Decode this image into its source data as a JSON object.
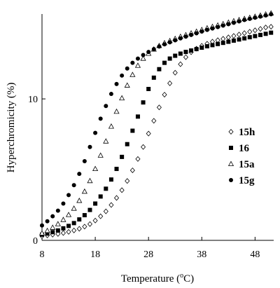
{
  "chart_data": {
    "type": "scatter",
    "xlabel": "Temperature (",
    "xlabel_sup": "o",
    "xlabel_suffix": "C)",
    "ylabel": "Hyperchromicity (%)",
    "xlim": [
      8,
      51.5
    ],
    "ylim": [
      0,
      16
    ],
    "x_ticks": [
      8,
      18,
      28,
      38,
      48
    ],
    "y_ticks": [
      0,
      10
    ],
    "x_tick_labels": [
      "8",
      "18",
      "28",
      "38",
      "48"
    ],
    "y_tick_labels": [
      "0",
      "10"
    ],
    "legend_position": "right",
    "grid": false,
    "series": [
      {
        "name": "15h",
        "marker": "diamond-open",
        "x": [
          8,
          9,
          10,
          11,
          12,
          13,
          14,
          15,
          16,
          17,
          18,
          19,
          20,
          21,
          22,
          23,
          24,
          25,
          26,
          27,
          28,
          29,
          30,
          31,
          32,
          33,
          34,
          35,
          36,
          37,
          38,
          39,
          40,
          41,
          42,
          43,
          44,
          45,
          46,
          47,
          48,
          49,
          50,
          51
        ],
        "y": [
          0.3,
          0.35,
          0.4,
          0.45,
          0.52,
          0.6,
          0.7,
          0.82,
          0.97,
          1.15,
          1.4,
          1.7,
          2.05,
          2.5,
          3.0,
          3.55,
          4.2,
          4.95,
          5.75,
          6.6,
          7.55,
          8.45,
          9.4,
          10.3,
          11.1,
          11.85,
          12.45,
          12.95,
          13.3,
          13.55,
          13.75,
          13.9,
          14.05,
          14.15,
          14.25,
          14.35,
          14.45,
          14.55,
          14.65,
          14.75,
          14.85,
          14.95,
          15.05,
          15.1
        ]
      },
      {
        "name": "16",
        "marker": "square-filled",
        "x": [
          8,
          9,
          10,
          11,
          12,
          13,
          14,
          15,
          16,
          17,
          18,
          19,
          20,
          21,
          22,
          23,
          24,
          25,
          26,
          27,
          28,
          29,
          30,
          31,
          32,
          33,
          34,
          35,
          36,
          37,
          38,
          39,
          40,
          41,
          42,
          43,
          44,
          45,
          46,
          47,
          48,
          49,
          50,
          51
        ],
        "y": [
          0.4,
          0.48,
          0.58,
          0.7,
          0.85,
          1.02,
          1.22,
          1.48,
          1.78,
          2.15,
          2.6,
          3.1,
          3.65,
          4.3,
          5.05,
          5.9,
          6.8,
          7.75,
          8.75,
          9.75,
          10.7,
          11.5,
          12.1,
          12.55,
          12.85,
          13.05,
          13.2,
          13.32,
          13.42,
          13.52,
          13.62,
          13.72,
          13.8,
          13.88,
          13.96,
          14.04,
          14.12,
          14.2,
          14.28,
          14.36,
          14.44,
          14.52,
          14.6,
          14.68
        ]
      },
      {
        "name": "15a",
        "marker": "triangle-open",
        "x": [
          8,
          9,
          10,
          11,
          12,
          13,
          14,
          15,
          16,
          17,
          18,
          19,
          20,
          21,
          22,
          23,
          24,
          25,
          26,
          27,
          28,
          29,
          30,
          31,
          32,
          33,
          34,
          35,
          36,
          37,
          38,
          39,
          40,
          41,
          42,
          43,
          44,
          45,
          46,
          47,
          48,
          49,
          50,
          51
        ],
        "y": [
          0.5,
          0.68,
          0.9,
          1.15,
          1.45,
          1.8,
          2.25,
          2.8,
          3.45,
          4.2,
          5.05,
          6.0,
          7.0,
          8.05,
          9.1,
          10.05,
          10.95,
          11.7,
          12.35,
          12.85,
          13.2,
          13.5,
          13.75,
          13.95,
          14.1,
          14.25,
          14.4,
          14.52,
          14.64,
          14.76,
          14.88,
          15.0,
          15.1,
          15.2,
          15.3,
          15.4,
          15.5,
          15.58,
          15.66,
          15.74,
          15.82,
          15.9,
          15.98,
          16.05
        ]
      },
      {
        "name": "15g",
        "marker": "circle-filled",
        "x": [
          8,
          9,
          10,
          11,
          12,
          13,
          14,
          15,
          16,
          17,
          18,
          19,
          20,
          21,
          22,
          23,
          24,
          25,
          26,
          27,
          28,
          29,
          30,
          31,
          32,
          33,
          34,
          35,
          36,
          37,
          38,
          39,
          40,
          41,
          42,
          43,
          44,
          45,
          46,
          47,
          48,
          49,
          50,
          51
        ],
        "y": [
          1.05,
          1.35,
          1.7,
          2.1,
          2.6,
          3.2,
          3.9,
          4.7,
          5.6,
          6.6,
          7.6,
          8.6,
          9.5,
          10.35,
          11.05,
          11.65,
          12.15,
          12.55,
          12.85,
          13.1,
          13.32,
          13.52,
          13.7,
          13.86,
          14.0,
          14.14,
          14.28,
          14.4,
          14.52,
          14.64,
          14.76,
          14.88,
          14.98,
          15.08,
          15.18,
          15.28,
          15.38,
          15.48,
          15.58,
          15.66,
          15.74,
          15.82,
          15.9,
          15.98
        ]
      }
    ]
  }
}
